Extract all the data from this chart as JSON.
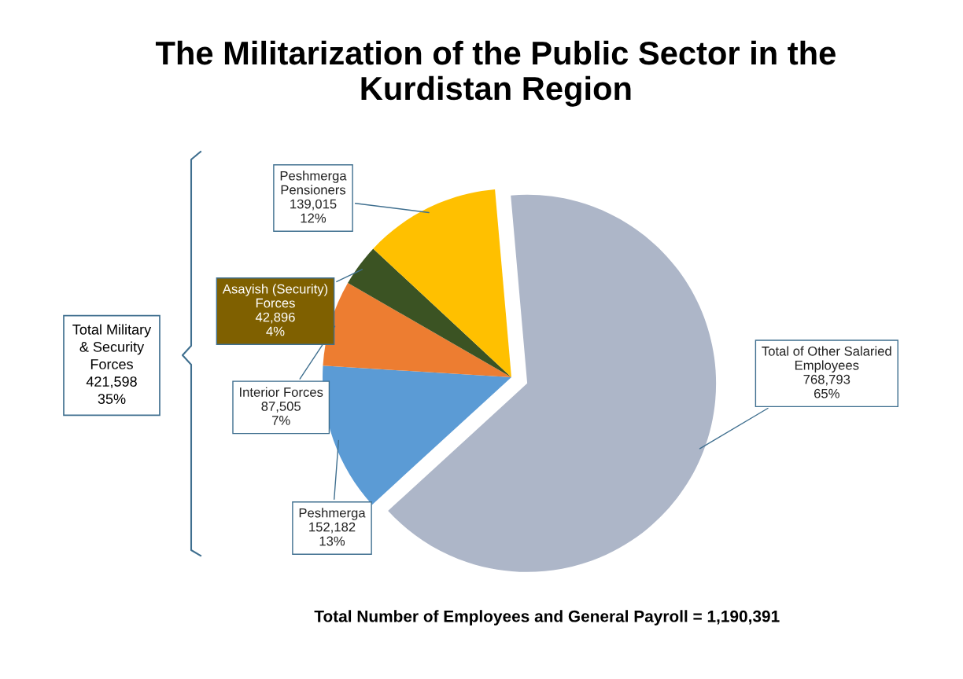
{
  "chart_data": {
    "type": "pie",
    "title": "The Militarization of the Public Sector in the\nKurdistan Region",
    "categories": [
      "Total of Other Salaried\nEmployees",
      "Peshmerga",
      "Interior Forces",
      "Asayish (Security)\nForces",
      "Peshmerga\nPensioners"
    ],
    "values": [
      768793,
      152182,
      87505,
      42896,
      139015
    ],
    "value_labels": [
      "768,793\n65%",
      "152,182\n13%",
      "87,505\n7%",
      "42,896\n4%",
      "139,015\n12%"
    ],
    "colors": [
      "#adb6c8",
      "#5b9bd5",
      "#ed7d31",
      "#3b5323",
      "#ffc000"
    ],
    "annotations": [
      "Total Military\n& Security\nForces\n421,598\n35%",
      "Total Number of Employees and General Payroll = 1,190,391"
    ]
  }
}
